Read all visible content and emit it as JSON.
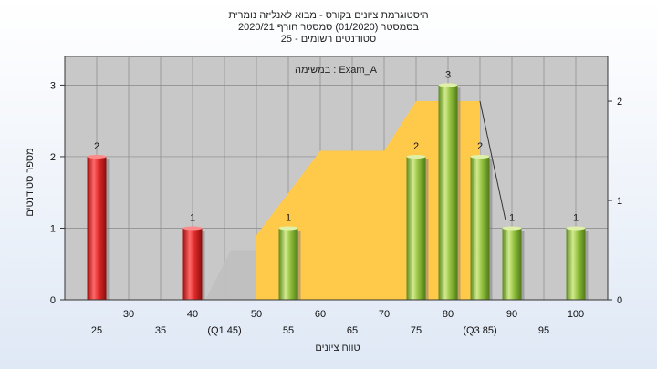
{
  "header": {
    "title_line1": "היסטוגרמת ציונים בקורס - מבוא לאנליזה נומרית",
    "title_line2": "בסמסטר  (01/2020)  סמסטר חורף  2020/21",
    "title_line3": "סטודנטים רשומים - 25"
  },
  "chart_data": {
    "type": "bar",
    "annotation": "במשימה : Exam_A",
    "xlabel": "טווח ציונים",
    "ylabel": "מספר סטודנטים",
    "xlim": [
      20,
      105
    ],
    "ylim": [
      0,
      3.4
    ],
    "y2lim": [
      0,
      2.45
    ],
    "yticks": [
      0,
      1,
      2,
      3
    ],
    "y2ticks": [
      0,
      1,
      2
    ],
    "x_tick_labels": [
      {
        "x": 25,
        "label": "25"
      },
      {
        "x": 30,
        "label": "30"
      },
      {
        "x": 35,
        "label": "35"
      },
      {
        "x": 40,
        "label": "40"
      },
      {
        "x": 45,
        "label": "(Q1 45)"
      },
      {
        "x": 50,
        "label": "50"
      },
      {
        "x": 55,
        "label": "55"
      },
      {
        "x": 60,
        "label": "60"
      },
      {
        "x": 65,
        "label": "65"
      },
      {
        "x": 70,
        "label": "70"
      },
      {
        "x": 75,
        "label": "75"
      },
      {
        "x": 80,
        "label": "80"
      },
      {
        "x": 85,
        "label": "(Q3 85)"
      },
      {
        "x": 90,
        "label": "90"
      },
      {
        "x": 95,
        "label": "95"
      },
      {
        "x": 100,
        "label": "100"
      }
    ],
    "series": [
      {
        "kind": "below_q1",
        "color": "#e02a2a",
        "points": [
          {
            "x": 25,
            "value": 2
          },
          {
            "x": 40,
            "value": 1
          }
        ]
      },
      {
        "kind": "above_q1",
        "color": "#94c240",
        "points": [
          {
            "x": 55,
            "value": 1
          },
          {
            "x": 75,
            "value": 2
          },
          {
            "x": 80,
            "value": 3
          },
          {
            "x": 85,
            "value": 2
          },
          {
            "x": 90,
            "value": 1
          },
          {
            "x": 100,
            "value": 1
          }
        ]
      }
    ],
    "background_area": {
      "color": "#ffc94a",
      "points": [
        [
          50,
          0.65
        ],
        [
          60,
          1.5
        ],
        [
          70,
          1.5
        ],
        [
          75,
          2.0
        ],
        [
          85,
          2.0
        ],
        [
          85,
          0
        ]
      ]
    },
    "gray_area": {
      "color": "#c0c0c0",
      "points": [
        [
          42,
          0
        ],
        [
          46,
          0.5
        ],
        [
          50,
          0.5
        ],
        [
          50,
          0
        ]
      ]
    },
    "trend_line": [
      [
        85,
        2.0
      ],
      [
        89,
        0.8
      ]
    ],
    "grid": true,
    "grid_color": "#888888",
    "plot_background": "#c8c8c8"
  }
}
